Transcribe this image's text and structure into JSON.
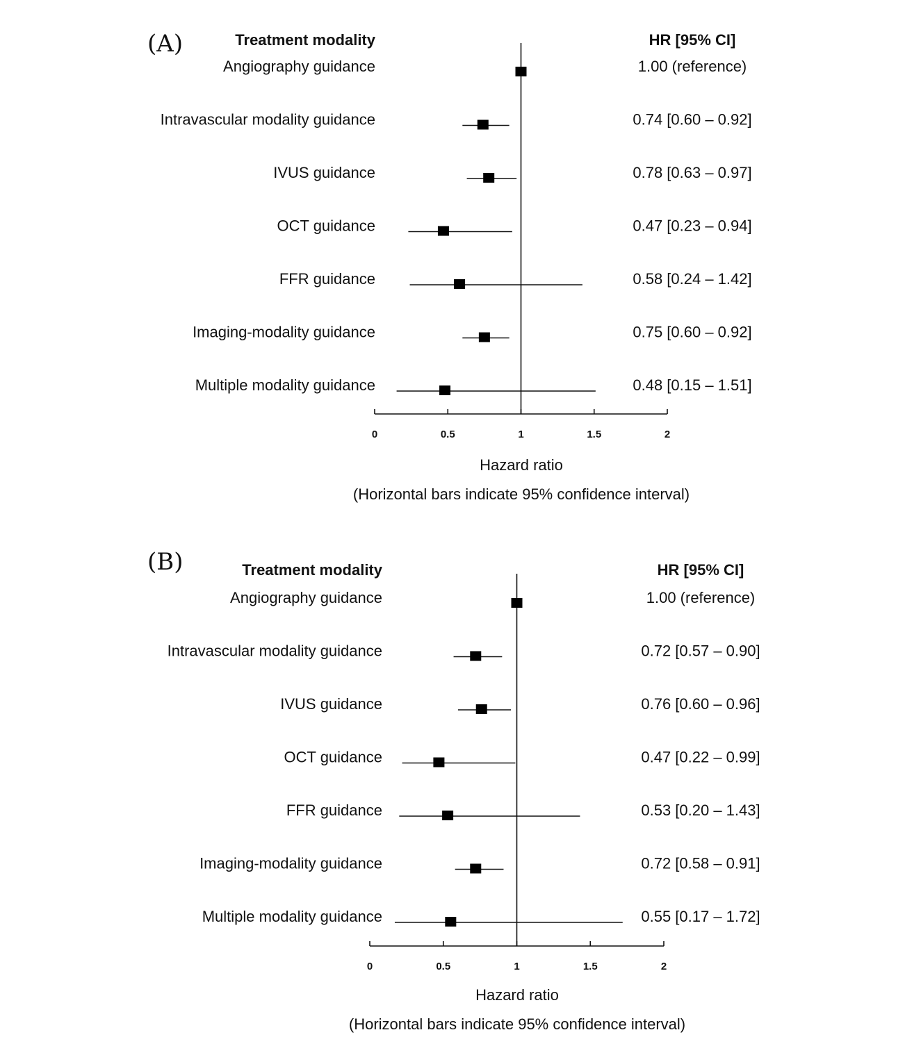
{
  "chart_data": [
    {
      "type": "forest",
      "panel": "(A)",
      "header_left": "Treatment modality",
      "header_right": "HR [95% CI]",
      "xlabel": "Hazard ratio",
      "footnote": "(Horizontal bars indicate 95% confidence interval)",
      "xlim": [
        0,
        2
      ],
      "ticks": [
        0,
        0.5,
        1,
        1.5,
        2
      ],
      "tick_labels": [
        "0",
        "0.5",
        "1",
        "1.5",
        "2"
      ],
      "reference_value": 1,
      "rows": [
        {
          "label": "Angiography guidance",
          "hr": 1.0,
          "lower": null,
          "upper": null,
          "text": "1.00 (reference)"
        },
        {
          "label": "Intravascular modality guidance",
          "hr": 0.74,
          "lower": 0.6,
          "upper": 0.92,
          "text": "0.74 [0.60 – 0.92]"
        },
        {
          "label": "IVUS guidance",
          "hr": 0.78,
          "lower": 0.63,
          "upper": 0.97,
          "text": "0.78 [0.63 – 0.97]"
        },
        {
          "label": "OCT guidance",
          "hr": 0.47,
          "lower": 0.23,
          "upper": 0.94,
          "text": "0.47 [0.23 – 0.94]"
        },
        {
          "label": "FFR guidance",
          "hr": 0.58,
          "lower": 0.24,
          "upper": 1.42,
          "text": "0.58 [0.24 – 1.42]"
        },
        {
          "label": "Imaging-modality guidance",
          "hr": 0.75,
          "lower": 0.6,
          "upper": 0.92,
          "text": "0.75 [0.60 – 0.92]"
        },
        {
          "label": "Multiple modality guidance",
          "hr": 0.48,
          "lower": 0.15,
          "upper": 1.51,
          "text": "0.48 [0.15 – 1.51]"
        }
      ]
    },
    {
      "type": "forest",
      "panel": "(B)",
      "header_left": "Treatment modality",
      "header_right": "HR [95% CI]",
      "xlabel": "Hazard ratio",
      "footnote": "(Horizontal bars indicate 95% confidence interval)",
      "xlim": [
        0,
        2
      ],
      "ticks": [
        0,
        0.5,
        1,
        1.5,
        2
      ],
      "tick_labels": [
        "0",
        "0.5",
        "1",
        "1.5",
        "2"
      ],
      "reference_value": 1,
      "rows": [
        {
          "label": "Angiography guidance",
          "hr": 1.0,
          "lower": null,
          "upper": null,
          "text": "1.00 (reference)"
        },
        {
          "label": "Intravascular modality guidance",
          "hr": 0.72,
          "lower": 0.57,
          "upper": 0.9,
          "text": "0.72 [0.57 – 0.90]"
        },
        {
          "label": "IVUS guidance",
          "hr": 0.76,
          "lower": 0.6,
          "upper": 0.96,
          "text": "0.76 [0.60 – 0.96]"
        },
        {
          "label": "OCT guidance",
          "hr": 0.47,
          "lower": 0.22,
          "upper": 0.99,
          "text": "0.47 [0.22 – 0.99]"
        },
        {
          "label": "FFR guidance",
          "hr": 0.53,
          "lower": 0.2,
          "upper": 1.43,
          "text": "0.53 [0.20 – 1.43]"
        },
        {
          "label": "Imaging-modality guidance",
          "hr": 0.72,
          "lower": 0.58,
          "upper": 0.91,
          "text": "0.72 [0.58 – 0.91]"
        },
        {
          "label": "Multiple modality guidance",
          "hr": 0.55,
          "lower": 0.17,
          "upper": 1.72,
          "text": "0.55 [0.17 – 1.72]"
        }
      ]
    }
  ]
}
